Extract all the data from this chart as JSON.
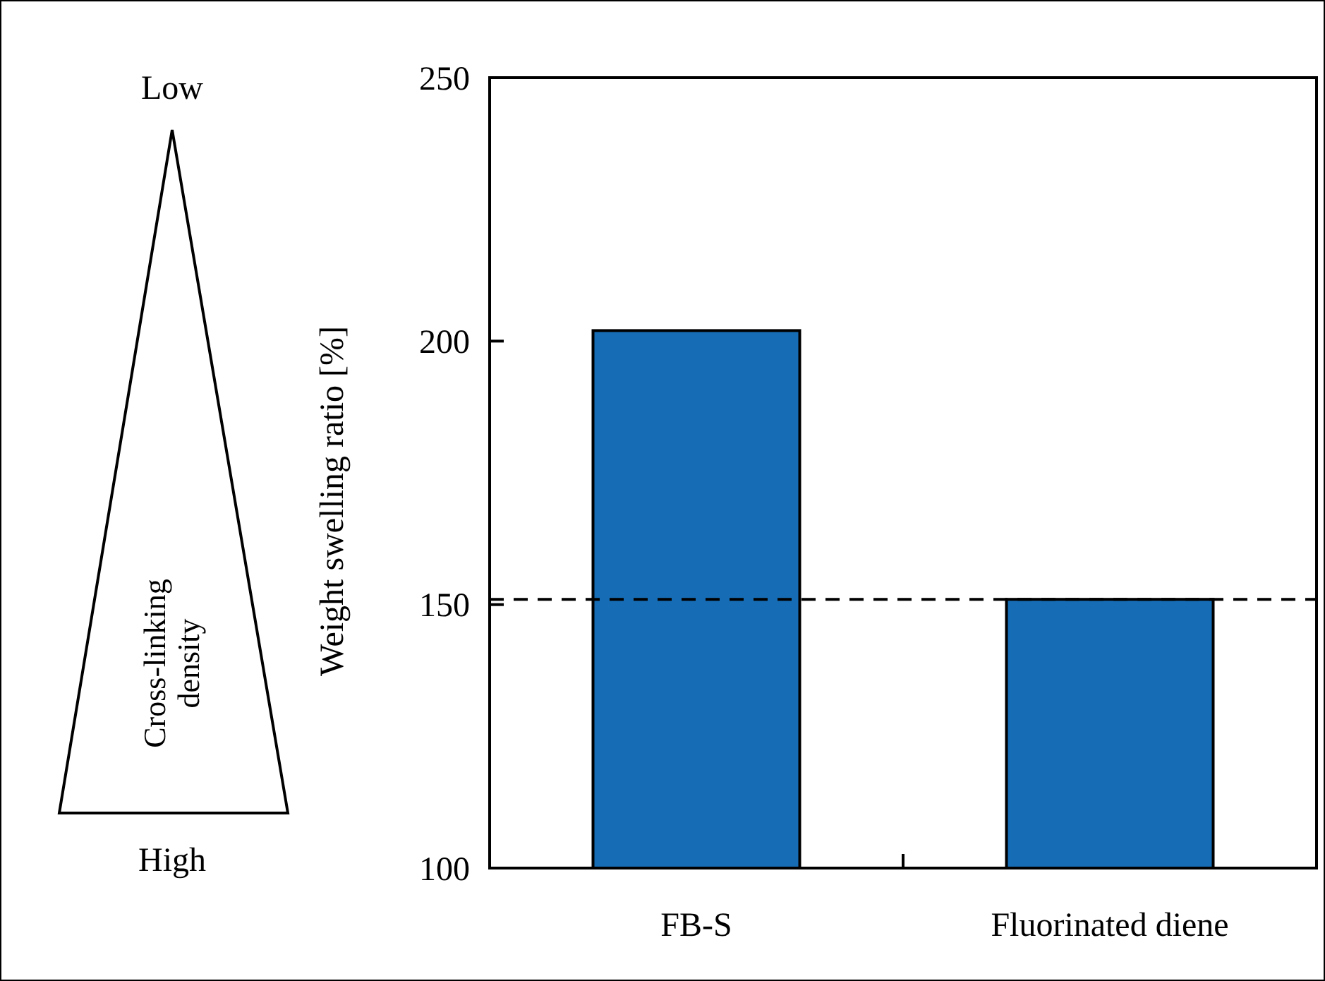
{
  "chart_data": {
    "type": "bar",
    "ylabel": "Weight swelling ratio [%]",
    "categories": [
      "FB-S",
      "Fluorinated diene"
    ],
    "values": [
      202,
      151
    ],
    "color": "#166db5",
    "ylim": [
      100,
      250
    ],
    "yticks": [
      100,
      150,
      200,
      250
    ],
    "ref_lines": [
      {
        "axis": "y",
        "value": 151,
        "line_style": "dashed",
        "color": "#000000"
      }
    ],
    "annotations": [
      "Low",
      "High",
      "Cross-linking density"
    ]
  }
}
